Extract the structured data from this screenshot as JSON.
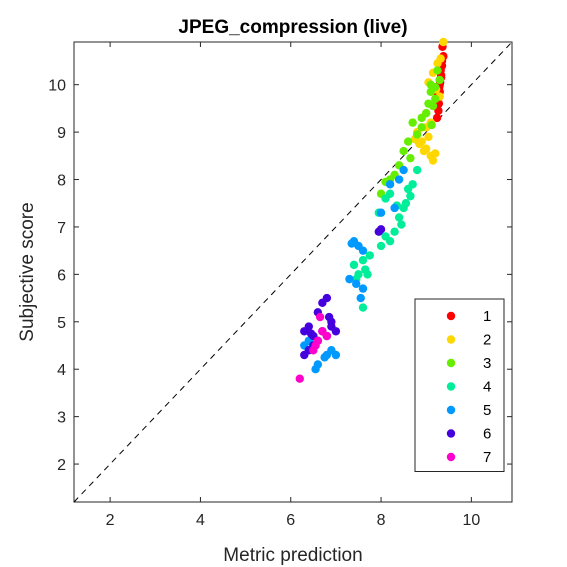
{
  "chart_data": {
    "type": "scatter",
    "title": "JPEG_compression (live)",
    "xlabel": "Metric prediction",
    "ylabel": "Subjective score",
    "xlim": [
      1.2,
      10.9
    ],
    "ylim": [
      1.2,
      10.9
    ],
    "xticks": [
      2,
      4,
      6,
      8,
      10
    ],
    "yticks": [
      2,
      3,
      4,
      5,
      6,
      7,
      8,
      9,
      10
    ],
    "reference_line": "identity (dashed)",
    "grid": false,
    "legend_position": "bottom-right",
    "series": [
      {
        "name": "1",
        "color": "#ff0000",
        "points": [
          [
            9.3,
            10.0
          ],
          [
            9.32,
            10.3
          ],
          [
            9.28,
            9.9
          ],
          [
            9.35,
            10.4
          ],
          [
            9.3,
            10.1
          ],
          [
            9.25,
            9.75
          ],
          [
            9.33,
            10.2
          ],
          [
            9.28,
            9.6
          ],
          [
            9.35,
            10.5
          ],
          [
            9.3,
            9.85
          ],
          [
            9.27,
            9.45
          ],
          [
            9.24,
            9.3
          ],
          [
            9.38,
            10.6
          ],
          [
            9.31,
            10.05
          ],
          [
            9.36,
            10.8
          ],
          [
            9.22,
            9.55
          ],
          [
            9.33,
            10.15
          ],
          [
            9.29,
            9.95
          ]
        ]
      },
      {
        "name": "2",
        "color": "#ffd700",
        "points": [
          [
            9.38,
            10.9
          ],
          [
            9.15,
            10.25
          ],
          [
            9.05,
            10.05
          ],
          [
            9.22,
            9.9
          ],
          [
            9.25,
            10.45
          ],
          [
            9.32,
            10.55
          ],
          [
            8.85,
            8.75
          ],
          [
            8.95,
            8.6
          ],
          [
            9.0,
            8.65
          ],
          [
            9.05,
            8.9
          ],
          [
            9.1,
            8.5
          ],
          [
            9.15,
            8.4
          ],
          [
            9.2,
            8.55
          ],
          [
            8.75,
            8.85
          ],
          [
            8.8,
            9.0
          ],
          [
            8.9,
            8.8
          ],
          [
            9.3,
            9.75
          ],
          [
            9.0,
            9.1
          ],
          [
            9.1,
            9.2
          ]
        ]
      },
      {
        "name": "3",
        "color": "#66ee00",
        "points": [
          [
            9.1,
            9.85
          ],
          [
            9.2,
            9.7
          ],
          [
            9.3,
            10.1
          ],
          [
            9.0,
            9.4
          ],
          [
            9.05,
            9.6
          ],
          [
            9.15,
            9.55
          ],
          [
            8.9,
            9.3
          ],
          [
            8.7,
            9.2
          ],
          [
            8.6,
            8.8
          ],
          [
            8.5,
            8.6
          ],
          [
            8.4,
            8.3
          ],
          [
            8.3,
            8.1
          ],
          [
            8.2,
            8.0
          ],
          [
            8.1,
            7.95
          ],
          [
            8.0,
            7.7
          ],
          [
            8.9,
            9.1
          ],
          [
            9.2,
            9.95
          ],
          [
            9.25,
            10.3
          ],
          [
            9.1,
            10.0
          ],
          [
            8.8,
            8.95
          ],
          [
            8.65,
            8.45
          ],
          [
            9.12,
            9.15
          ]
        ]
      },
      {
        "name": "4",
        "color": "#00ee99",
        "points": [
          [
            7.95,
            7.3
          ],
          [
            8.1,
            7.6
          ],
          [
            8.2,
            7.7
          ],
          [
            8.3,
            6.9
          ],
          [
            8.4,
            7.2
          ],
          [
            8.5,
            7.4
          ],
          [
            8.55,
            7.5
          ],
          [
            8.6,
            7.8
          ],
          [
            8.7,
            7.9
          ],
          [
            8.0,
            6.6
          ],
          [
            8.1,
            6.8
          ],
          [
            8.2,
            6.7
          ],
          [
            7.6,
            6.3
          ],
          [
            7.65,
            6.1
          ],
          [
            7.7,
            6.0
          ],
          [
            7.5,
            6.0
          ],
          [
            7.45,
            5.9
          ],
          [
            7.4,
            6.2
          ],
          [
            7.75,
            6.4
          ],
          [
            7.6,
            5.3
          ],
          [
            8.35,
            7.45
          ],
          [
            8.8,
            8.2
          ],
          [
            8.45,
            7.05
          ],
          [
            8.65,
            7.65
          ]
        ]
      },
      {
        "name": "5",
        "color": "#0099ff",
        "points": [
          [
            7.4,
            6.7
          ],
          [
            7.5,
            6.6
          ],
          [
            7.6,
            6.5
          ],
          [
            7.3,
            5.9
          ],
          [
            7.45,
            5.8
          ],
          [
            7.6,
            5.7
          ],
          [
            6.8,
            4.3
          ],
          [
            6.9,
            4.4
          ],
          [
            7.0,
            4.3
          ],
          [
            6.6,
            4.1
          ],
          [
            6.55,
            4.0
          ],
          [
            6.4,
            4.6
          ],
          [
            6.5,
            4.7
          ],
          [
            6.3,
            4.5
          ],
          [
            8.5,
            8.2
          ],
          [
            8.4,
            8.0
          ],
          [
            8.2,
            7.9
          ],
          [
            8.0,
            7.3
          ],
          [
            8.3,
            7.4
          ],
          [
            7.55,
            5.5
          ],
          [
            7.35,
            6.65
          ],
          [
            6.75,
            4.25
          ]
        ]
      },
      {
        "name": "6",
        "color": "#4400dd",
        "points": [
          [
            6.3,
            4.8
          ],
          [
            6.4,
            4.9
          ],
          [
            6.5,
            4.7
          ],
          [
            6.6,
            4.6
          ],
          [
            6.7,
            4.8
          ],
          [
            6.8,
            4.7
          ],
          [
            6.9,
            4.9
          ],
          [
            7.0,
            4.8
          ],
          [
            6.5,
            4.5
          ],
          [
            6.4,
            4.4
          ],
          [
            6.3,
            4.3
          ],
          [
            6.6,
            5.2
          ],
          [
            6.7,
            5.4
          ],
          [
            6.8,
            5.5
          ],
          [
            6.9,
            5.0
          ],
          [
            8.0,
            6.95
          ],
          [
            7.95,
            6.9
          ],
          [
            6.45,
            4.75
          ],
          [
            6.85,
            5.1
          ]
        ]
      },
      {
        "name": "7",
        "color": "#ff00cc",
        "points": [
          [
            6.2,
            3.8
          ],
          [
            6.5,
            4.4
          ],
          [
            6.6,
            4.6
          ],
          [
            6.7,
            4.8
          ],
          [
            6.65,
            5.1
          ],
          [
            6.8,
            4.7
          ],
          [
            6.55,
            4.5
          ]
        ]
      }
    ]
  }
}
